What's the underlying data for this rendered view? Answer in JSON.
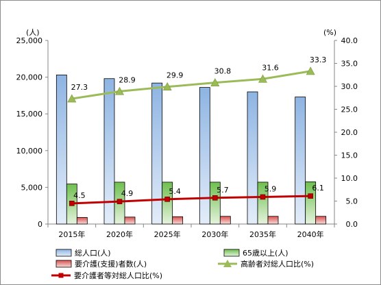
{
  "chart_data": {
    "type": "bar",
    "categories": [
      "2015年",
      "2020年",
      "2025年",
      "2030年",
      "2035年",
      "2040年"
    ],
    "left_unit": "(人)",
    "right_unit": "(%)",
    "ylim_left": [
      0,
      25000
    ],
    "ylim_right": [
      0,
      40
    ],
    "left_ticks": [
      "0",
      "5,000",
      "10,000",
      "15,000",
      "20,000",
      "25,000"
    ],
    "right_ticks": [
      "0.0",
      "5.0",
      "10.0",
      "15.0",
      "20.0",
      "25.0",
      "30.0",
      "35.0",
      "40.0"
    ],
    "grid": false,
    "legend_position": "bottom",
    "series": [
      {
        "name": "総人口(人)",
        "kind": "bar",
        "axis": "left",
        "values": [
          20300,
          19800,
          19200,
          18600,
          18000,
          17300
        ],
        "color": "#4f81bd"
      },
      {
        "name": "65歳以上(人)",
        "kind": "bar",
        "axis": "left",
        "values": [
          5450,
          5700,
          5700,
          5700,
          5700,
          5750
        ],
        "color": "#4ea72c"
      },
      {
        "name": "要介護(支援)者数(人)",
        "kind": "bar",
        "axis": "left",
        "values": [
          900,
          950,
          1000,
          1050,
          1050,
          1050
        ],
        "color": "#c0504d"
      },
      {
        "name": "高齢者対総人口比(%)",
        "kind": "line",
        "axis": "right",
        "values": [
          27.3,
          28.9,
          29.9,
          30.8,
          31.6,
          33.3
        ],
        "labels": [
          "27.3",
          "28.9",
          "29.9",
          "30.8",
          "31.6",
          "33.3"
        ],
        "color": "#9bbb59"
      },
      {
        "name": "要介護者等対総人口比(%)",
        "kind": "line",
        "axis": "right",
        "values": [
          4.5,
          4.9,
          5.4,
          5.7,
          5.9,
          6.1
        ],
        "labels": [
          "4.5",
          "4.9",
          "5.4",
          "5.7",
          "5.9",
          "6.1"
        ],
        "color": "#c00000"
      }
    ]
  }
}
